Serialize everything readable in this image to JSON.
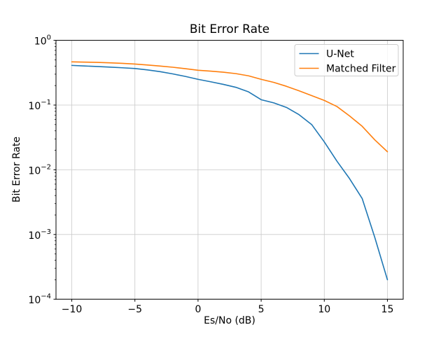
{
  "figure": {
    "title": "Bit Error Rate",
    "xlabel": "Es/No (dB)",
    "ylabel": "Bit Error Rate"
  },
  "chart_data": {
    "type": "line",
    "title": "Bit Error Rate",
    "xlabel": "Es/No (dB)",
    "ylabel": "Bit Error Rate",
    "xscale": "linear",
    "yscale": "log",
    "grid": true,
    "legend_position": "upper right",
    "xlim": [
      -11.25,
      16.25
    ],
    "ylim": [
      0.0001,
      1.0
    ],
    "x": [
      -10,
      -9,
      -8,
      -7,
      -6,
      -5,
      -4,
      -3,
      -2,
      -1,
      0,
      1,
      2,
      3,
      4,
      5,
      6,
      7,
      8,
      9,
      10,
      11,
      12,
      13,
      14,
      15
    ],
    "series": [
      {
        "name": "U-Net",
        "color": "#1f77b4",
        "values": [
          0.41,
          0.402,
          0.394,
          0.386,
          0.377,
          0.367,
          0.349,
          0.328,
          0.303,
          0.277,
          0.25,
          0.229,
          0.209,
          0.188,
          0.16,
          0.121,
          0.108,
          0.092,
          0.071,
          0.05,
          0.027,
          0.0136,
          0.0073,
          0.0036,
          0.0009,
          0.0002
        ]
      },
      {
        "name": "Matched Filter",
        "color": "#ff7f0e",
        "values": [
          0.465,
          0.461,
          0.456,
          0.45,
          0.441,
          0.43,
          0.416,
          0.401,
          0.384,
          0.365,
          0.345,
          0.334,
          0.322,
          0.306,
          0.283,
          0.25,
          0.224,
          0.195,
          0.166,
          0.14,
          0.118,
          0.095,
          0.068,
          0.047,
          0.029,
          0.019
        ]
      }
    ],
    "xticks": [
      -10,
      -5,
      0,
      5,
      10,
      15
    ],
    "xtick_labels": [
      "−10",
      "−5",
      "0",
      "5",
      "10",
      "15"
    ],
    "yticks": [
      {
        "value": 1,
        "base": "10",
        "exp": "0"
      },
      {
        "value": 0.1,
        "base": "10",
        "exp": "−1"
      },
      {
        "value": 0.01,
        "base": "10",
        "exp": "−2"
      },
      {
        "value": 0.001,
        "base": "10",
        "exp": "−3"
      },
      {
        "value": 0.0001,
        "base": "10",
        "exp": "−4"
      }
    ],
    "colors": {
      "grid": "#c9c9c9",
      "spine": "#000000",
      "text": "#000000",
      "background": "#ffffff",
      "legend_border": "#cccccc",
      "legend_fill": "#ffffff"
    }
  }
}
